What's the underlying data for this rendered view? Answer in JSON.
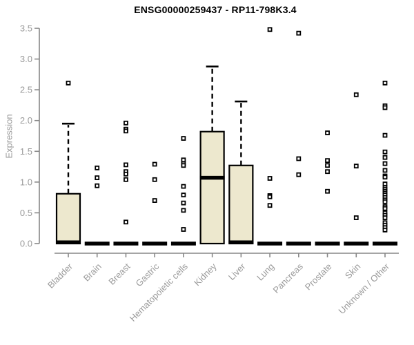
{
  "chart_data": {
    "type": "box",
    "title": "ENSG00000259437 - RP11-798K3.4",
    "ylabel": "Expression",
    "xlabel": "",
    "ylim": [
      0,
      3.5
    ],
    "yticks": [
      "0.0",
      "0.5",
      "1.0",
      "1.5",
      "2.0",
      "2.5",
      "3.0",
      "3.5"
    ],
    "grid": "off",
    "legend": "none",
    "categories": [
      "Bladder",
      "Brain",
      "Breast",
      "Gastric",
      "Hematopoietic cells",
      "Kidney",
      "Liver",
      "Lung",
      "Pancreas",
      "Prostate",
      "Skin",
      "Unknown / Other"
    ],
    "series": [
      {
        "category": "Bladder",
        "q1": 0,
        "median": 0.02,
        "q3": 0.81,
        "whisker_low": 0,
        "whisker_high": 1.95,
        "outliers": [
          2.61
        ]
      },
      {
        "category": "Brain",
        "q1": 0,
        "median": 0,
        "q3": 0,
        "whisker_low": 0,
        "whisker_high": 0,
        "outliers": [
          1.23,
          1.07,
          0.94
        ]
      },
      {
        "category": "Breast",
        "q1": 0,
        "median": 0,
        "q3": 0,
        "whisker_low": 0,
        "whisker_high": 0,
        "outliers": [
          1.96,
          1.86,
          1.83,
          1.28,
          1.17,
          1.13,
          1.04,
          0.35
        ]
      },
      {
        "category": "Gastric",
        "q1": 0,
        "median": 0,
        "q3": 0,
        "whisker_low": 0,
        "whisker_high": 0,
        "outliers": [
          1.29,
          1.04,
          0.7
        ]
      },
      {
        "category": "Hematopoietic cells",
        "q1": 0,
        "median": 0,
        "q3": 0,
        "whisker_low": 0,
        "whisker_high": 0,
        "outliers": [
          1.71,
          1.36,
          1.3,
          1.27,
          0.93,
          0.79,
          0.66,
          0.54,
          0.23
        ]
      },
      {
        "category": "Kidney",
        "q1": 0,
        "median": 1.07,
        "q3": 1.82,
        "whisker_low": 0,
        "whisker_high": 2.88,
        "outliers": []
      },
      {
        "category": "Liver",
        "q1": 0,
        "median": 0.02,
        "q3": 1.27,
        "whisker_low": 0,
        "whisker_high": 2.31,
        "outliers": []
      },
      {
        "category": "Lung",
        "q1": 0,
        "median": 0,
        "q3": 0,
        "whisker_low": 0,
        "whisker_high": 0,
        "outliers": [
          3.48,
          1.06,
          0.78,
          0.76,
          0.62
        ]
      },
      {
        "category": "Pancreas",
        "q1": 0,
        "median": 0,
        "q3": 0,
        "whisker_low": 0,
        "whisker_high": 0,
        "outliers": [
          3.42,
          1.38,
          1.12
        ]
      },
      {
        "category": "Prostate",
        "q1": 0,
        "median": 0,
        "q3": 0,
        "whisker_low": 0,
        "whisker_high": 0,
        "outliers": [
          1.8,
          1.35,
          1.27,
          1.17,
          0.85
        ]
      },
      {
        "category": "Skin",
        "q1": 0,
        "median": 0,
        "q3": 0,
        "whisker_low": 0,
        "whisker_high": 0,
        "outliers": [
          2.42,
          1.26,
          0.42
        ]
      },
      {
        "category": "Unknown / Other",
        "q1": 0,
        "median": 0,
        "q3": 0,
        "whisker_low": 0,
        "whisker_high": 0,
        "outliers": [
          2.61,
          2.24,
          2.21,
          1.76,
          1.49,
          1.4,
          1.3,
          1.19,
          1.1,
          1.08,
          0.97,
          0.91,
          0.88,
          0.85,
          0.82,
          0.79,
          0.75,
          0.71,
          0.68,
          0.6,
          0.57,
          0.5,
          0.46,
          0.42,
          0.34,
          0.3,
          0.26,
          0.22
        ]
      }
    ],
    "colors": {
      "box_fill": "#ede8ce",
      "box_border": "#000000",
      "median": "#000000",
      "outlier_fill": "#ffffff",
      "outlier_border": "#000000",
      "axis_line": "#878787",
      "tick_text": "#9a9a9a",
      "title_text": "#000000"
    }
  }
}
